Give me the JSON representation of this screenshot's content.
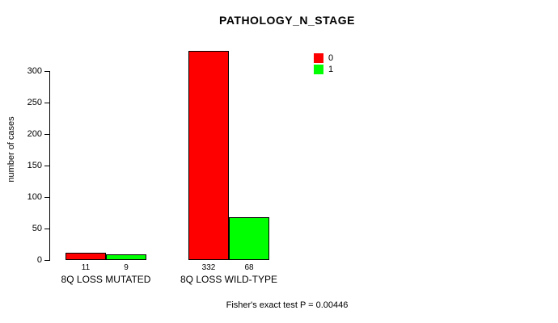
{
  "chart_data": {
    "type": "bar",
    "title": "PATHOLOGY_N_STAGE",
    "ylabel": "number of cases",
    "xlabel": "",
    "ylim": [
      0,
      340
    ],
    "yticks": [
      0,
      50,
      100,
      150,
      200,
      250,
      300
    ],
    "grid": false,
    "categories": [
      "8Q LOSS MUTATED",
      "8Q LOSS WILD-TYPE"
    ],
    "series": [
      {
        "name": "0",
        "color": "#ff0000",
        "values": [
          11,
          332
        ]
      },
      {
        "name": "1",
        "color": "#00ff00",
        "values": [
          9,
          68
        ]
      }
    ],
    "bar_value_labels": [
      [
        "11",
        "9"
      ],
      [
        "332",
        "68"
      ]
    ],
    "legend_position": "top-right",
    "annotation": "Fisher's exact test P = 0.00446"
  }
}
